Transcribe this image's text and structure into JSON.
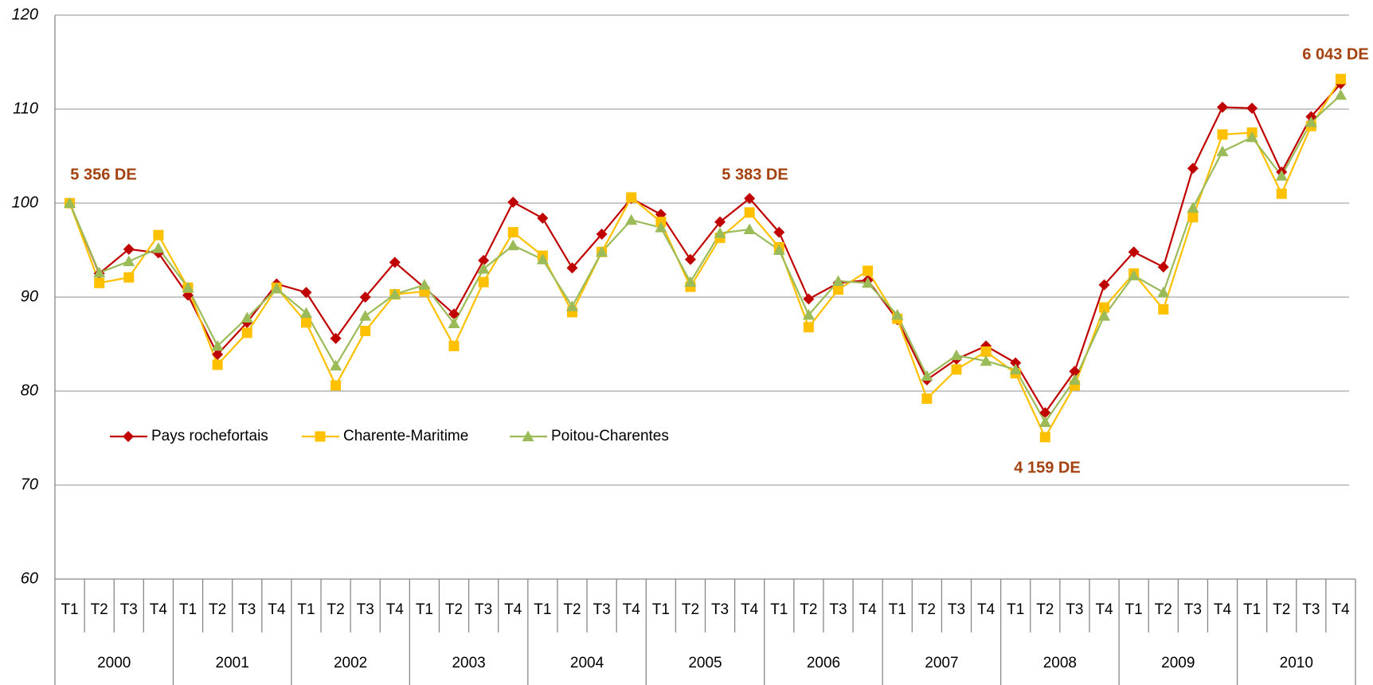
{
  "chart_data": {
    "type": "line",
    "categories": [
      "T1",
      "T2",
      "T3",
      "T4",
      "T1",
      "T2",
      "T3",
      "T4",
      "T1",
      "T2",
      "T3",
      "T4",
      "T1",
      "T2",
      "T3",
      "T4",
      "T1",
      "T2",
      "T3",
      "T4",
      "T1",
      "T2",
      "T3",
      "T4",
      "T1",
      "T2",
      "T3",
      "T4",
      "T1",
      "T2",
      "T3",
      "T4",
      "T1",
      "T2",
      "T3",
      "T4",
      "T1",
      "T2",
      "T3",
      "T4",
      "T1",
      "T2",
      "T3",
      "T4"
    ],
    "category_groups": [
      "2000",
      "2001",
      "2002",
      "2003",
      "2004",
      "2005",
      "2006",
      "2007",
      "2008",
      "2009",
      "2010"
    ],
    "series": [
      {
        "name": "Pays rochefortais",
        "color": "#c00000",
        "marker": "diamond",
        "values": [
          100,
          92.5,
          95.1,
          94.7,
          90.2,
          83.9,
          87.3,
          91.4,
          90.5,
          85.6,
          90.0,
          93.7,
          91.0,
          88.2,
          93.9,
          100.1,
          98.4,
          93.1,
          96.7,
          100.5,
          98.8,
          94.0,
          98.0,
          100.5,
          96.9,
          89.8,
          91.5,
          91.8,
          87.6,
          81.2,
          83.4,
          84.8,
          83.0,
          77.7,
          82.1,
          91.3,
          94.8,
          93.2,
          103.7,
          110.2,
          110.1,
          103.3,
          109.2,
          112.7
        ]
      },
      {
        "name": "Charente-Maritime",
        "color": "#ffc000",
        "marker": "square",
        "values": [
          100,
          91.5,
          92.1,
          96.6,
          91.0,
          82.8,
          86.2,
          91.0,
          87.3,
          80.6,
          86.4,
          90.3,
          90.6,
          84.8,
          91.6,
          96.9,
          94.4,
          88.4,
          94.8,
          100.6,
          98.0,
          91.1,
          96.3,
          99.0,
          95.3,
          86.8,
          90.8,
          92.8,
          87.7,
          79.2,
          82.3,
          84.2,
          81.9,
          75.1,
          80.6,
          88.9,
          92.5,
          88.7,
          98.5,
          107.3,
          107.5,
          101.0,
          108.2,
          113.2
        ]
      },
      {
        "name": "Poitou-Charentes",
        "color": "#9bbb59",
        "marker": "triangle",
        "values": [
          100,
          92.6,
          93.8,
          95.2,
          91.0,
          84.8,
          87.8,
          90.9,
          88.3,
          82.7,
          88.0,
          90.3,
          91.3,
          87.2,
          93.0,
          95.5,
          94.0,
          89.0,
          94.8,
          98.2,
          97.4,
          91.6,
          96.8,
          97.2,
          95.0,
          88.1,
          91.7,
          91.5,
          88.1,
          81.6,
          83.8,
          83.2,
          82.3,
          76.7,
          81.2,
          88.0,
          92.3,
          90.5,
          99.5,
          105.5,
          107.0,
          102.9,
          108.6,
          111.5
        ]
      }
    ],
    "annotations": [
      "5 356 DE",
      "5 383 DE",
      "4 159 DE",
      "6 043 DE"
    ],
    "ylim": [
      60,
      120
    ],
    "yticks": [
      60,
      70,
      80,
      90,
      100,
      110,
      120
    ],
    "grid": true,
    "legend": "left"
  }
}
